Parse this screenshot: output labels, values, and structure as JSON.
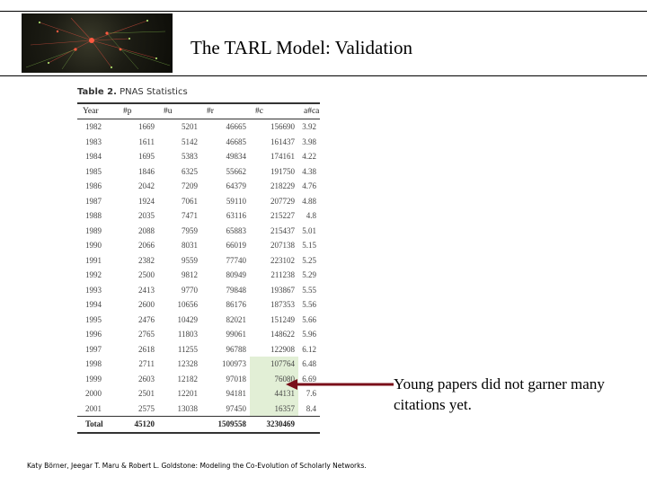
{
  "slide": {
    "title": "The TARL Model: Validation",
    "footer": "Katy Börner, Jeegar T. Maru & Robert L. Goldstone: Modeling the Co-Evolution of Scholarly Networks."
  },
  "table": {
    "label": "Table 2.",
    "title": "PNAS Statistics",
    "headers": [
      "Year",
      "#p",
      "#u",
      "#r",
      "#c",
      "a#ca"
    ],
    "rows": [
      [
        "1982",
        "1669",
        "5201",
        "46665",
        "156690",
        "3.92"
      ],
      [
        "1983",
        "1611",
        "5142",
        "46685",
        "161437",
        "3.98"
      ],
      [
        "1984",
        "1695",
        "5383",
        "49834",
        "174161",
        "4.22"
      ],
      [
        "1985",
        "1846",
        "6325",
        "55662",
        "191750",
        "4.38"
      ],
      [
        "1986",
        "2042",
        "7209",
        "64379",
        "218229",
        "4.76"
      ],
      [
        "1987",
        "1924",
        "7061",
        "59110",
        "207729",
        "4.88"
      ],
      [
        "1988",
        "2035",
        "7471",
        "63116",
        "215227",
        "4.8"
      ],
      [
        "1989",
        "2088",
        "7959",
        "65883",
        "215437",
        "5.01"
      ],
      [
        "1990",
        "2066",
        "8031",
        "66019",
        "207138",
        "5.15"
      ],
      [
        "1991",
        "2382",
        "9559",
        "77740",
        "223102",
        "5.25"
      ],
      [
        "1992",
        "2500",
        "9812",
        "80949",
        "211238",
        "5.29"
      ],
      [
        "1993",
        "2413",
        "9770",
        "79848",
        "193867",
        "5.55"
      ],
      [
        "1994",
        "2600",
        "10656",
        "86176",
        "187353",
        "5.56"
      ],
      [
        "1995",
        "2476",
        "10429",
        "82021",
        "151249",
        "5.66"
      ],
      [
        "1996",
        "2765",
        "11803",
        "99061",
        "148622",
        "5.96"
      ],
      [
        "1997",
        "2618",
        "11255",
        "96788",
        "122908",
        "6.12"
      ],
      [
        "1998",
        "2711",
        "12328",
        "100973",
        "107764",
        "6.48"
      ],
      [
        "1999",
        "2603",
        "12182",
        "97018",
        "76080",
        "6.69"
      ],
      [
        "2000",
        "2501",
        "12201",
        "94181",
        "44131",
        "7.6"
      ],
      [
        "2001",
        "2575",
        "13038",
        "97450",
        "16357",
        "8.4"
      ]
    ],
    "total": [
      "Total",
      "45120",
      "",
      "1509558",
      "3230469",
      ""
    ]
  },
  "annotation": {
    "text": "Young papers did not garner many citations yet.",
    "color": "#7a0f1a"
  },
  "colors": {
    "highlight": "#e2efd6"
  }
}
